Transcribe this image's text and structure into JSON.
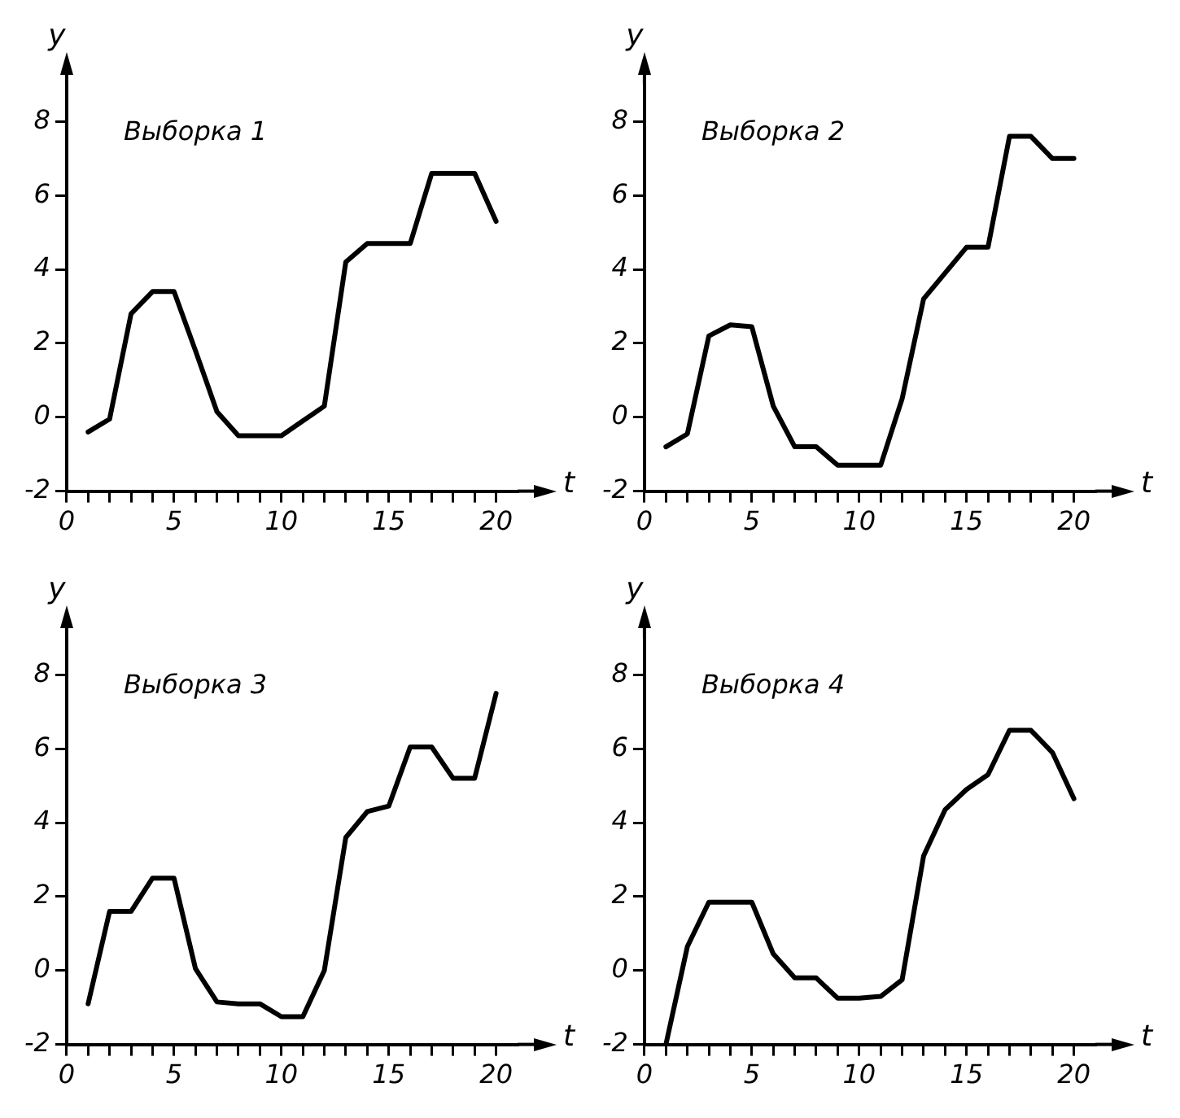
{
  "chart_data": [
    {
      "type": "line",
      "title": "Выборка 1",
      "xlabel": "t",
      "ylabel": "y",
      "x": [
        1,
        2,
        3,
        4,
        5,
        6,
        7,
        8,
        9,
        10,
        11,
        12,
        13,
        14,
        15,
        16,
        17,
        18,
        19,
        20
      ],
      "series": [
        {
          "color": "#000000",
          "values": [
            -0.4,
            -0.05,
            2.8,
            3.4,
            3.4,
            1.8,
            0.15,
            -0.5,
            -0.5,
            -0.5,
            -0.1,
            0.3,
            4.2,
            4.7,
            4.7,
            4.7,
            6.6,
            6.6,
            6.6,
            5.3
          ]
        }
      ],
      "xlim": [
        0,
        21
      ],
      "ylim": [
        -2,
        9
      ],
      "xticks": [
        0,
        {
          "value": 1,
          "label": null
        },
        {
          "value": 2,
          "label": null
        },
        {
          "value": 3,
          "label": null
        },
        {
          "value": 4,
          "label": null
        },
        5,
        {
          "value": 6,
          "label": null
        },
        {
          "value": 7,
          "label": null
        },
        {
          "value": 8,
          "label": null
        },
        {
          "value": 9,
          "label": null
        },
        10,
        {
          "value": 11,
          "label": null
        },
        {
          "value": 12,
          "label": null
        },
        {
          "value": 13,
          "label": null
        },
        {
          "value": 14,
          "label": null
        },
        15,
        {
          "value": 16,
          "label": null
        },
        {
          "value": 17,
          "label": null
        },
        {
          "value": 18,
          "label": null
        },
        {
          "value": 19,
          "label": null
        },
        20
      ],
      "yticks": [
        -2,
        0,
        2,
        4,
        6,
        8
      ],
      "grid": false,
      "legend": false,
      "marker": "none",
      "line_style": "solid"
    },
    {
      "type": "line",
      "title": "Выборка 2",
      "xlabel": "t",
      "ylabel": "y",
      "x": [
        1,
        2,
        3,
        4,
        5,
        6,
        7,
        8,
        9,
        10,
        11,
        12,
        13,
        14,
        15,
        16,
        17,
        18,
        19,
        20
      ],
      "series": [
        {
          "color": "#000000",
          "values": [
            -0.8,
            -0.45,
            2.2,
            2.5,
            2.45,
            0.3,
            -0.8,
            -0.8,
            -1.3,
            -1.3,
            -1.3,
            0.5,
            3.2,
            3.9,
            4.6,
            4.6,
            7.6,
            7.6,
            7.0,
            7.0
          ]
        }
      ],
      "xlim": [
        0,
        21
      ],
      "ylim": [
        -2,
        9
      ],
      "xticks": [
        0,
        {
          "value": 1,
          "label": null
        },
        {
          "value": 2,
          "label": null
        },
        {
          "value": 3,
          "label": null
        },
        {
          "value": 4,
          "label": null
        },
        5,
        {
          "value": 6,
          "label": null
        },
        {
          "value": 7,
          "label": null
        },
        {
          "value": 8,
          "label": null
        },
        {
          "value": 9,
          "label": null
        },
        10,
        {
          "value": 11,
          "label": null
        },
        {
          "value": 12,
          "label": null
        },
        {
          "value": 13,
          "label": null
        },
        {
          "value": 14,
          "label": null
        },
        15,
        {
          "value": 16,
          "label": null
        },
        {
          "value": 17,
          "label": null
        },
        {
          "value": 18,
          "label": null
        },
        {
          "value": 19,
          "label": null
        },
        20
      ],
      "yticks": [
        -2,
        0,
        2,
        4,
        6,
        8
      ],
      "grid": false,
      "legend": false,
      "marker": "none",
      "line_style": "solid"
    },
    {
      "type": "line",
      "title": "Выборка 3",
      "xlabel": "t",
      "ylabel": "y",
      "x": [
        1,
        2,
        3,
        4,
        5,
        6,
        7,
        8,
        9,
        10,
        11,
        12,
        13,
        14,
        15,
        16,
        17,
        18,
        19,
        20
      ],
      "series": [
        {
          "color": "#000000",
          "values": [
            -0.9,
            1.6,
            1.6,
            2.5,
            2.5,
            0.05,
            -0.85,
            -0.9,
            -0.9,
            -1.25,
            -1.25,
            0.0,
            3.6,
            4.3,
            4.45,
            6.05,
            6.05,
            5.2,
            5.2,
            7.5
          ]
        }
      ],
      "xlim": [
        0,
        21
      ],
      "ylim": [
        -2,
        9
      ],
      "xticks": [
        0,
        {
          "value": 1,
          "label": null
        },
        {
          "value": 2,
          "label": null
        },
        {
          "value": 3,
          "label": null
        },
        {
          "value": 4,
          "label": null
        },
        5,
        {
          "value": 6,
          "label": null
        },
        {
          "value": 7,
          "label": null
        },
        {
          "value": 8,
          "label": null
        },
        {
          "value": 9,
          "label": null
        },
        10,
        {
          "value": 11,
          "label": null
        },
        {
          "value": 12,
          "label": null
        },
        {
          "value": 13,
          "label": null
        },
        {
          "value": 14,
          "label": null
        },
        15,
        {
          "value": 16,
          "label": null
        },
        {
          "value": 17,
          "label": null
        },
        {
          "value": 18,
          "label": null
        },
        {
          "value": 19,
          "label": null
        },
        20
      ],
      "yticks": [
        -2,
        0,
        2,
        4,
        6,
        8
      ],
      "grid": false,
      "legend": false,
      "marker": "none",
      "line_style": "solid"
    },
    {
      "type": "line",
      "title": "Выборка 4",
      "xlabel": "t",
      "ylabel": "y",
      "x": [
        1,
        2,
        3,
        4,
        5,
        6,
        7,
        8,
        9,
        10,
        11,
        12,
        13,
        14,
        15,
        16,
        17,
        18,
        19,
        20
      ],
      "series": [
        {
          "color": "#000000",
          "values": [
            -2.0,
            0.65,
            1.85,
            1.85,
            1.85,
            0.45,
            -0.2,
            -0.2,
            -0.75,
            -0.75,
            -0.7,
            -0.25,
            3.1,
            4.35,
            4.9,
            5.3,
            6.5,
            6.5,
            5.9,
            4.65
          ]
        }
      ],
      "xlim": [
        0,
        21
      ],
      "ylim": [
        -2,
        9
      ],
      "xticks": [
        0,
        {
          "value": 1,
          "label": null
        },
        {
          "value": 2,
          "label": null
        },
        {
          "value": 3,
          "label": null
        },
        {
          "value": 4,
          "label": null
        },
        5,
        {
          "value": 6,
          "label": null
        },
        {
          "value": 7,
          "label": null
        },
        {
          "value": 8,
          "label": null
        },
        {
          "value": 9,
          "label": null
        },
        10,
        {
          "value": 11,
          "label": null
        },
        {
          "value": 12,
          "label": null
        },
        {
          "value": 13,
          "label": null
        },
        {
          "value": 14,
          "label": null
        },
        15,
        {
          "value": 16,
          "label": null
        },
        {
          "value": 17,
          "label": null
        },
        {
          "value": 18,
          "label": null
        },
        {
          "value": 19,
          "label": null
        },
        20
      ],
      "yticks": [
        -2,
        0,
        2,
        4,
        6,
        8
      ],
      "grid": false,
      "legend": false,
      "marker": "none",
      "line_style": "solid"
    }
  ]
}
